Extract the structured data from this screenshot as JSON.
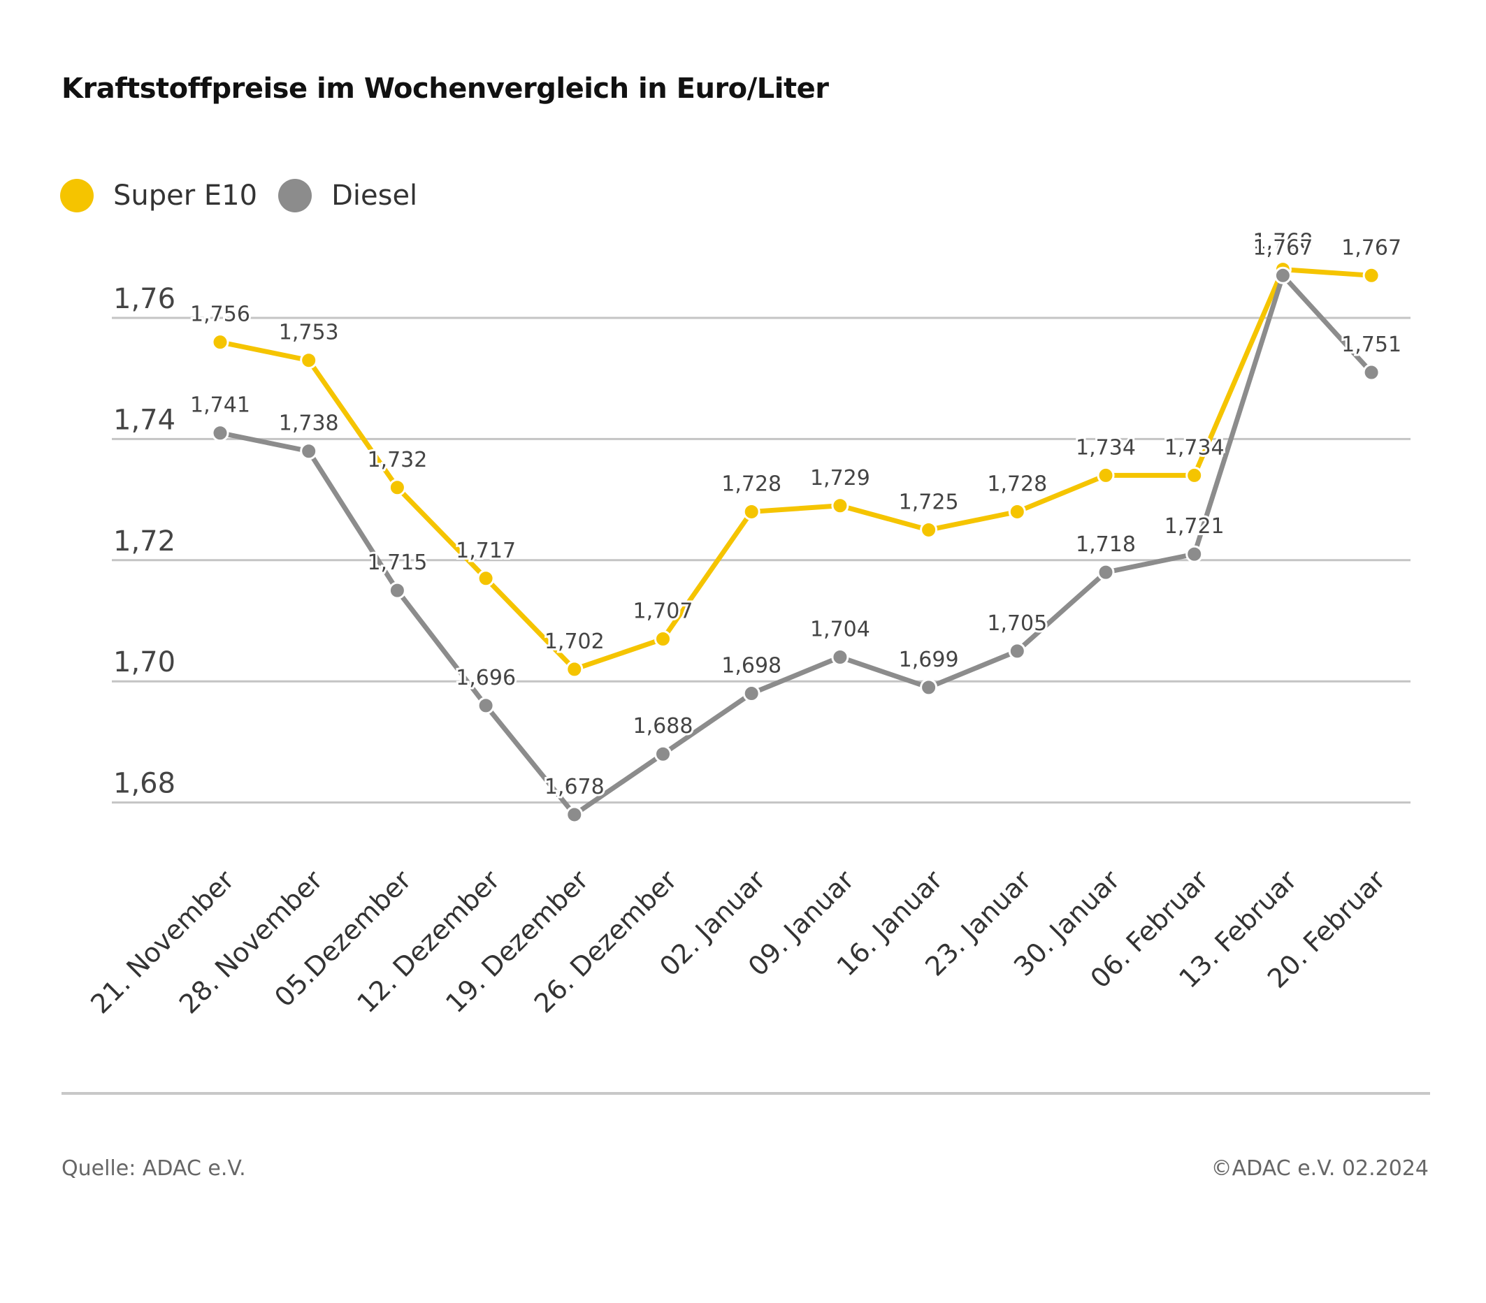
{
  "title": "Kraftstoffpreise im Wochenvergleich in Euro/Liter",
  "source": "Quelle: ADAC e.V.",
  "copyright": "©ADAC e.V. 02.2024",
  "chart_data": {
    "type": "line",
    "title": "Kraftstoffpreise im Wochenvergleich in Euro/Liter",
    "xlabel": "",
    "ylabel": "",
    "ylim": [
      1.67,
      1.775
    ],
    "yticks": [
      1.68,
      1.7,
      1.72,
      1.74,
      1.76
    ],
    "ytick_labels": [
      "1,68",
      "1,70",
      "1,72",
      "1,74",
      "1,76"
    ],
    "grid": true,
    "legend_position": "top-left",
    "categories": [
      "21. November",
      "28. November",
      "05.Dezember",
      "12. Dezember",
      "19. Dezember",
      "26. Dezember",
      "02. Januar",
      "09. Januar",
      "16. Januar",
      "23. Januar",
      "30. Januar",
      "06. Februar",
      "13. Februar",
      "20. Februar"
    ],
    "series": [
      {
        "name": "Super E10",
        "color": "#f5c400",
        "values": [
          1.756,
          1.753,
          1.732,
          1.717,
          1.702,
          1.707,
          1.728,
          1.729,
          1.725,
          1.728,
          1.734,
          1.734,
          1.768,
          1.767
        ],
        "labels": [
          "1,756",
          "1,753",
          "1,732",
          "1,717",
          "1,702",
          "1,707",
          "1,728",
          "1,729",
          "1,725",
          "1,728",
          "1,734",
          "1,734",
          "1,768",
          "1,767"
        ]
      },
      {
        "name": "Diesel",
        "color": "#8c8c8c",
        "values": [
          1.741,
          1.738,
          1.715,
          1.696,
          1.678,
          1.688,
          1.698,
          1.704,
          1.699,
          1.705,
          1.718,
          1.721,
          1.767,
          1.751
        ],
        "labels": [
          "1,741",
          "1,738",
          "1,715",
          "1,696",
          "1,678",
          "1,688",
          "1,698",
          "1,704",
          "1,699",
          "1,705",
          "1,718",
          "1,721",
          "1,767",
          "1,751"
        ]
      }
    ]
  }
}
